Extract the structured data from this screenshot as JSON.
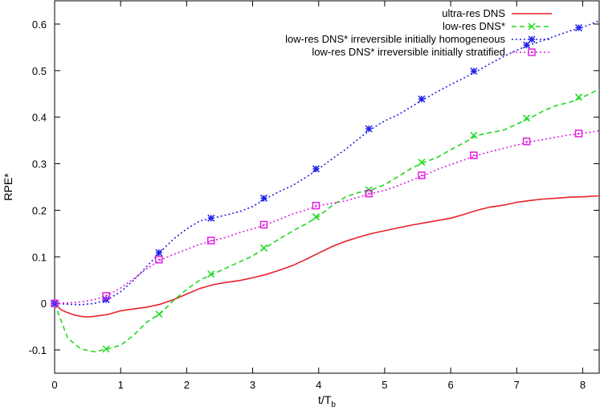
{
  "chart_data": {
    "type": "line",
    "xlabel": "t/T",
    "xlabel_sub": "b",
    "ylabel": "RPE*",
    "xlim": [
      0,
      8.25
    ],
    "ylim": [
      -0.15,
      0.65
    ],
    "xticks": [
      0,
      1,
      2,
      3,
      4,
      5,
      6,
      7,
      8
    ],
    "xtick_labels": [
      "0",
      "1",
      "2",
      "3",
      "4",
      "5",
      "6",
      "7",
      "8"
    ],
    "yticks": [
      -0.1,
      0,
      0.1,
      0.2,
      0.3,
      0.4,
      0.5,
      0.6
    ],
    "ytick_labels": [
      "-0.1",
      "0",
      "0.1",
      "0.2",
      "0.3",
      "0.4",
      "0.5",
      "0.6"
    ],
    "grid": false,
    "legend_position": "top-right",
    "series": [
      {
        "name": "ultra-res DNS",
        "color": "#e8222a",
        "dash": "solid",
        "marker": "none",
        "x": [
          0,
          0.1,
          0.2,
          0.3,
          0.4,
          0.5,
          0.6,
          0.7,
          0.8,
          1.0,
          1.2,
          1.4,
          1.6,
          1.8,
          2.0,
          2.2,
          2.4,
          2.6,
          2.8,
          3.0,
          3.2,
          3.4,
          3.6,
          3.8,
          4.0,
          4.2,
          4.4,
          4.6,
          4.8,
          5.0,
          5.2,
          5.4,
          5.6,
          5.8,
          6.0,
          6.2,
          6.4,
          6.6,
          6.8,
          7.0,
          7.2,
          7.4,
          7.6,
          7.8,
          8.0,
          8.25
        ],
        "y": [
          0,
          -0.014,
          -0.02,
          -0.025,
          -0.028,
          -0.029,
          -0.028,
          -0.026,
          -0.024,
          -0.016,
          -0.012,
          -0.008,
          -0.002,
          0.008,
          0.02,
          0.032,
          0.04,
          0.045,
          0.049,
          0.055,
          0.062,
          0.071,
          0.081,
          0.094,
          0.108,
          0.122,
          0.133,
          0.142,
          0.15,
          0.156,
          0.162,
          0.168,
          0.173,
          0.178,
          0.183,
          0.191,
          0.2,
          0.207,
          0.211,
          0.217,
          0.221,
          0.224,
          0.226,
          0.228,
          0.229,
          0.231
        ]
      },
      {
        "name": "low-res DNS*",
        "color": "#1fd81f",
        "dash": "dashed",
        "marker": "x",
        "x": [
          0,
          0.2,
          0.4,
          0.6,
          0.8,
          1.0,
          1.2,
          1.4,
          1.6,
          1.8,
          2.0,
          2.2,
          2.4,
          2.6,
          2.8,
          3.0,
          3.2,
          3.4,
          3.6,
          3.8,
          4.0,
          4.2,
          4.4,
          4.6,
          4.8,
          5.0,
          5.2,
          5.4,
          5.6,
          5.8,
          6.0,
          6.2,
          6.4,
          6.6,
          6.8,
          7.0,
          7.2,
          7.4,
          7.6,
          7.8,
          8.0,
          8.25
        ],
        "y": [
          0,
          -0.075,
          -0.098,
          -0.104,
          -0.098,
          -0.09,
          -0.068,
          -0.04,
          -0.022,
          0.006,
          0.03,
          0.05,
          0.063,
          0.076,
          0.089,
          0.102,
          0.12,
          0.138,
          0.155,
          0.17,
          0.187,
          0.21,
          0.228,
          0.238,
          0.244,
          0.255,
          0.272,
          0.29,
          0.303,
          0.314,
          0.33,
          0.345,
          0.361,
          0.367,
          0.372,
          0.385,
          0.398,
          0.413,
          0.425,
          0.432,
          0.443,
          0.46
        ],
        "markers_x": [
          0,
          0.78,
          1.58,
          2.37,
          3.17,
          3.96,
          4.76,
          5.56,
          6.35,
          7.15,
          7.94
        ],
        "markers_y": [
          0,
          -0.098,
          -0.023,
          0.063,
          0.119,
          0.186,
          0.244,
          0.303,
          0.361,
          0.398,
          0.443
        ]
      },
      {
        "name": "low-res DNS* irreversible initially homogeneous",
        "color": "#2020e8",
        "dash": "dotted",
        "marker": "asterisk",
        "x": [
          0,
          0.2,
          0.4,
          0.6,
          0.8,
          1.0,
          1.2,
          1.4,
          1.6,
          1.8,
          2.0,
          2.2,
          2.4,
          2.6,
          2.8,
          3.0,
          3.2,
          3.4,
          3.6,
          3.8,
          4.0,
          4.2,
          4.4,
          4.6,
          4.8,
          5.0,
          5.2,
          5.4,
          5.6,
          5.8,
          6.0,
          6.2,
          6.4,
          6.6,
          6.8,
          7.0,
          7.2,
          7.4,
          7.6,
          7.8,
          8.0,
          8.25
        ],
        "y": [
          0,
          -0.002,
          -0.003,
          0.0,
          0.008,
          0.025,
          0.05,
          0.08,
          0.11,
          0.138,
          0.16,
          0.177,
          0.183,
          0.19,
          0.197,
          0.208,
          0.225,
          0.24,
          0.253,
          0.27,
          0.289,
          0.31,
          0.33,
          0.353,
          0.375,
          0.392,
          0.405,
          0.422,
          0.439,
          0.455,
          0.47,
          0.484,
          0.499,
          0.515,
          0.53,
          0.544,
          0.555,
          0.565,
          0.575,
          0.585,
          0.593,
          0.607
        ],
        "markers_x": [
          0,
          0.78,
          1.58,
          2.37,
          3.17,
          3.96,
          4.76,
          5.56,
          6.35,
          7.15,
          7.94
        ],
        "markers_y": [
          0,
          0.008,
          0.109,
          0.183,
          0.226,
          0.289,
          0.375,
          0.439,
          0.499,
          0.555,
          0.592
        ]
      },
      {
        "name": "low-res DNS* irreversible initially stratified",
        "color": "#e020e0",
        "dash": "dotted",
        "marker": "square",
        "x": [
          0,
          0.2,
          0.4,
          0.6,
          0.8,
          1.0,
          1.2,
          1.4,
          1.6,
          1.8,
          2.0,
          2.2,
          2.4,
          2.6,
          2.8,
          3.0,
          3.2,
          3.4,
          3.6,
          3.8,
          4.0,
          4.2,
          4.4,
          4.6,
          4.8,
          5.0,
          5.2,
          5.4,
          5.6,
          5.8,
          6.0,
          6.2,
          6.4,
          6.6,
          6.8,
          7.0,
          7.2,
          7.4,
          7.6,
          7.8,
          8.0,
          8.25
        ],
        "y": [
          0,
          0.001,
          0.003,
          0.008,
          0.017,
          0.033,
          0.053,
          0.075,
          0.093,
          0.105,
          0.116,
          0.127,
          0.135,
          0.142,
          0.152,
          0.16,
          0.169,
          0.18,
          0.192,
          0.2,
          0.21,
          0.215,
          0.22,
          0.228,
          0.236,
          0.243,
          0.253,
          0.264,
          0.275,
          0.288,
          0.298,
          0.308,
          0.318,
          0.326,
          0.333,
          0.34,
          0.347,
          0.352,
          0.357,
          0.362,
          0.365,
          0.371
        ],
        "markers_x": [
          0,
          0.78,
          1.58,
          2.37,
          3.17,
          3.96,
          4.76,
          5.56,
          6.35,
          7.15,
          7.94
        ],
        "markers_y": [
          0,
          0.016,
          0.094,
          0.135,
          0.169,
          0.21,
          0.236,
          0.275,
          0.318,
          0.348,
          0.365
        ]
      }
    ]
  }
}
